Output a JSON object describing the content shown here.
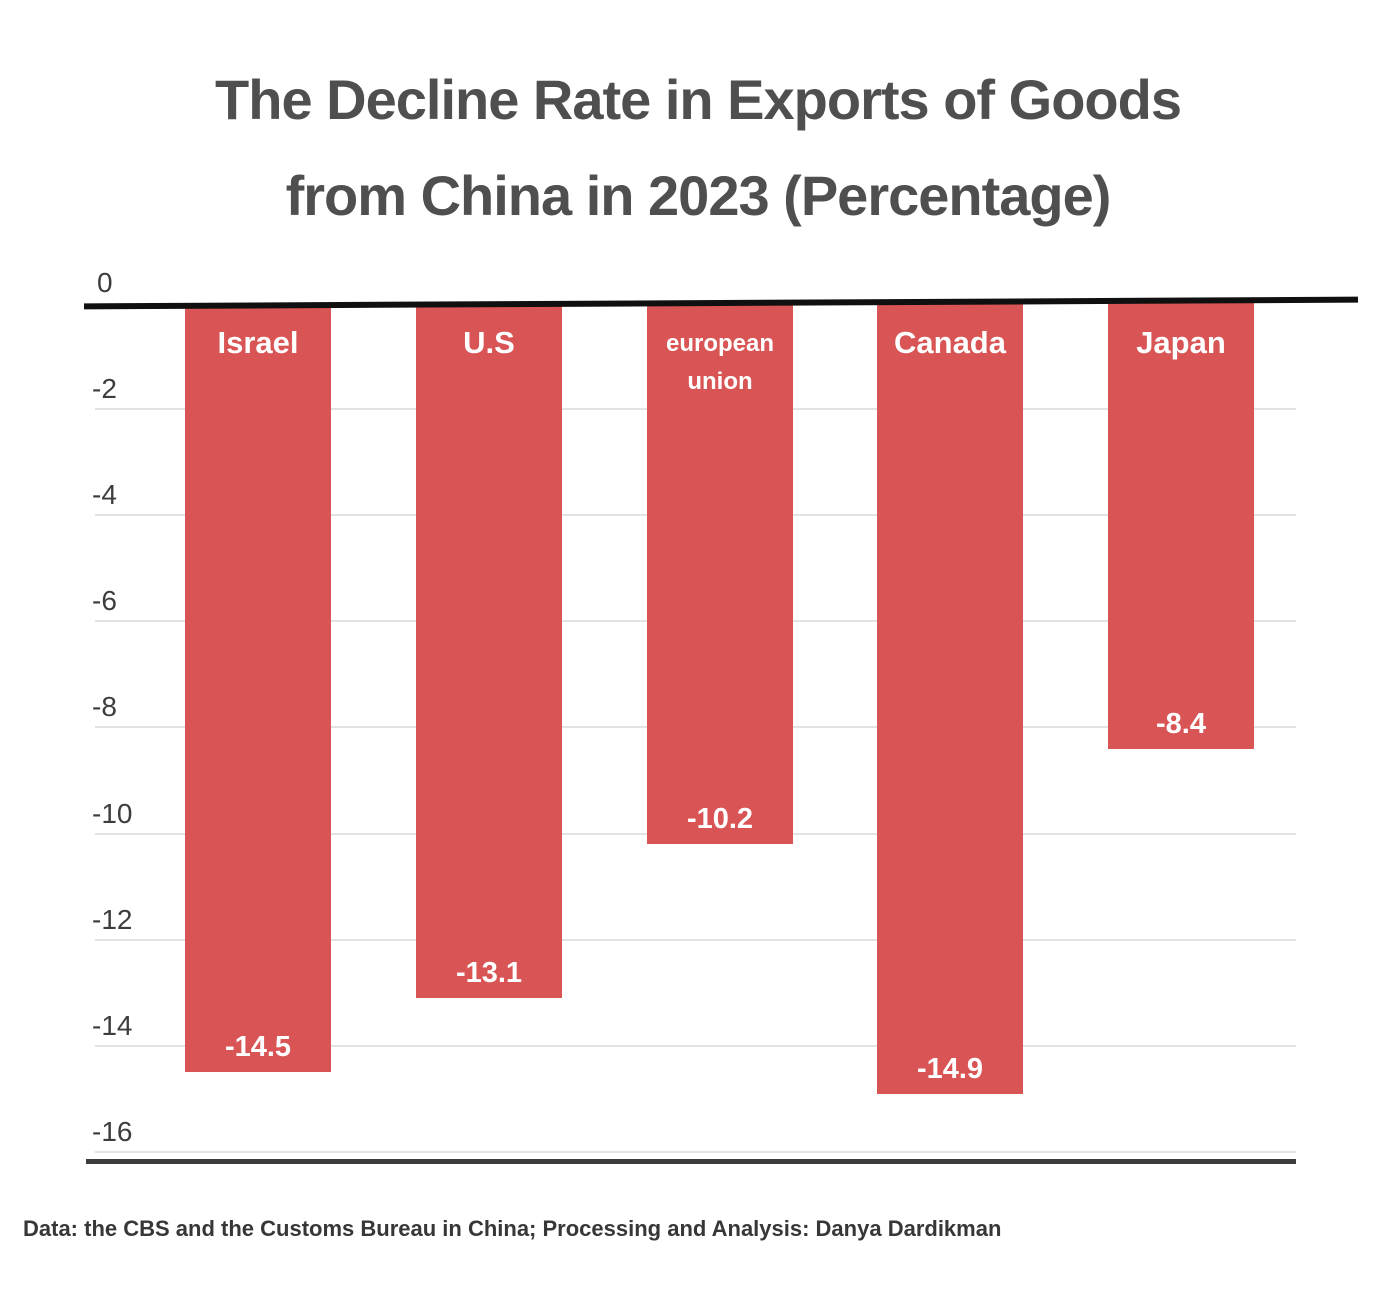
{
  "title": {
    "line1": "The Decline Rate in Exports of Goods",
    "line2": "from China in 2023 (Percentage)"
  },
  "footer": "Data: the CBS and the Customs Bureau in China; Processing and Analysis: Danya Dardikman",
  "colors": {
    "bar": "#d95454",
    "bar_label": "#ffffff",
    "title_text": "#4f4f4f",
    "axis_label": "#3d3d3d",
    "gridline": "#e3e3e3",
    "zero_line": "#101010",
    "bottom_border": "#3c3c3c",
    "footer_text": "#373737"
  },
  "chart_data": {
    "type": "bar",
    "orientation": "vertical",
    "title": "The Decline Rate in Exports of Goods from China in 2023 (Percentage)",
    "categories": [
      "Israel",
      "U.S",
      "european union",
      "Canada",
      "Japan"
    ],
    "values": [
      -14.5,
      -13.1,
      -10.2,
      -14.9,
      -8.4
    ],
    "value_labels": [
      "-14.5",
      "-13.1",
      "-10.2",
      "-14.9",
      "-8.4"
    ],
    "xlabel": "",
    "ylabel": "",
    "ylim": [
      -16,
      0
    ],
    "yticks": [
      0,
      -2,
      -4,
      -6,
      -8,
      -10,
      -12,
      -14,
      -16
    ],
    "grid": true,
    "legend": false,
    "source_note": "Data: the CBS and the Customs Bureau in China; Processing and Analysis: Danya Dardikman"
  }
}
